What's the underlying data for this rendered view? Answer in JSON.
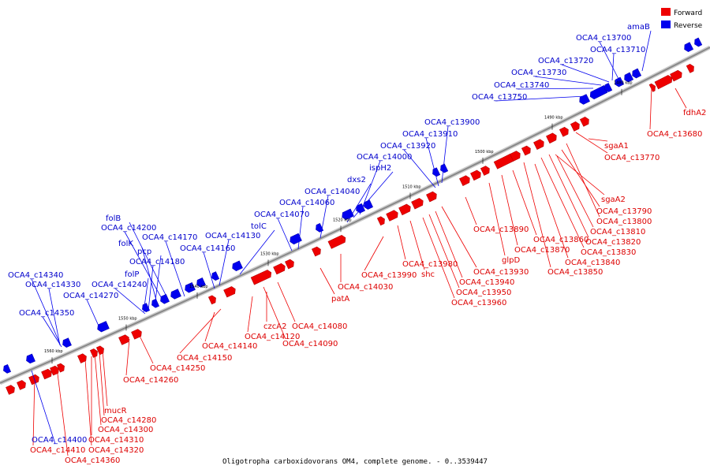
{
  "title": "Oligotropha carboxidovorans OM4, complete genome. - 0..3539447",
  "legend": [
    {
      "label": "Forward",
      "color": "#ee0000"
    },
    {
      "label": "Reverse",
      "color": "#0000ee"
    }
  ],
  "colors": {
    "forward": "#ee0000",
    "reverse": "#0000ee",
    "forward_label": "#dd0000",
    "reverse_label": "#0000cc",
    "backbone": "#aaaaaa"
  },
  "ticks": [
    "1480 kbp",
    "1490 kbp",
    "1500 kbp",
    "1510 kbp",
    "1520 kbp",
    "1530 kbp",
    "1540 kbp",
    "1550 kbp",
    "1560 kbp"
  ],
  "forward_labels": [
    "fdhA2",
    "OCA4_c13680",
    "sgaA1",
    "OCA4_c13770",
    "sgaA2",
    "OCA4_c13790",
    "OCA4_c13800",
    "OCA4_c13810",
    "OCA4_c13820",
    "OCA4_c13830",
    "OCA4_c13840",
    "OCA4_c13850",
    "OCA4_c13860",
    "OCA4_c13870",
    "OCA4_c13890",
    "glpD",
    "OCA4_c13930",
    "OCA4_c13940",
    "OCA4_c13950",
    "OCA4_c13960",
    "OCA4_c13980",
    "shc",
    "OCA4_c13990",
    "OCA4_c14030",
    "patA",
    "OCA4_c14080",
    "OCA4_c14090",
    "czcA2",
    "OCA4_c14120",
    "OCA4_c14140",
    "OCA4_c14150",
    "OCA4_c14250",
    "OCA4_c14260",
    "mucR",
    "OCA4_c14280",
    "OCA4_c14300",
    "OCA4_c14310",
    "OCA4_c14320",
    "OCA4_c14360",
    "OCA4_c14410"
  ],
  "reverse_labels": [
    "amaB",
    "OCA4_c13700",
    "OCA4_c13710",
    "OCA4_c13720",
    "OCA4_c13730",
    "OCA4_c13740",
    "OCA4_c13750",
    "OCA4_c13900",
    "OCA4_c13910",
    "OCA4_c13920",
    "OCA4_c14000",
    "ispH2",
    "dxs2",
    "OCA4_c14040",
    "OCA4_c14060",
    "OCA4_c14070",
    "tolC",
    "OCA4_c14130",
    "OCA4_c14160",
    "OCA4_c14170",
    "folB",
    "OCA4_c14200",
    "folK",
    "pcp",
    "OCA4_c14180",
    "folP",
    "OCA4_c14240",
    "OCA4_c14270",
    "OCA4_c14340",
    "OCA4_c14330",
    "OCA4_c14350",
    "OCA4_c14400"
  ]
}
